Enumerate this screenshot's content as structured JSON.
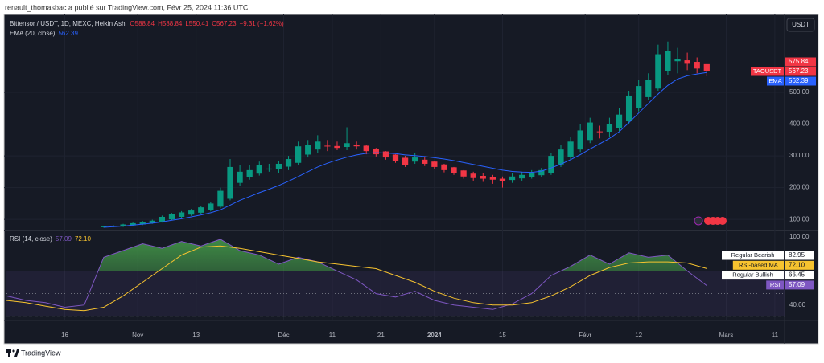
{
  "byline": "renault_thomasbac a publié sur TradingView.com, Févr 25, 2024 11:36 UTC",
  "footer": "TradingView",
  "chart_data": [
    {
      "type": "candlestick",
      "title": "Bittensor / USDT, 1D, MEXC, Heikin Ashi",
      "ohlc_labels": [
        "O588.84",
        "H588.84",
        "L550.41",
        "C567.23",
        "−9.31 (−1.62%)"
      ],
      "currency": "USDT",
      "up_color": "#089981",
      "down_color": "#f23645",
      "xlim": [
        0,
        160
      ],
      "ylim": [
        65,
        720
      ],
      "yticks": [
        {
          "value": 100,
          "label": "100.00"
        },
        {
          "value": 200,
          "label": "200.00"
        },
        {
          "value": 300,
          "label": "300.00"
        },
        {
          "value": 400,
          "label": "400.00"
        },
        {
          "value": 500,
          "label": "500.00"
        }
      ],
      "grid": true,
      "x": [
        20,
        22,
        24,
        26,
        28,
        30,
        32,
        34,
        36,
        38,
        40,
        42,
        44,
        46,
        48,
        50,
        52,
        54,
        56,
        58,
        60,
        62,
        64,
        66,
        68,
        70,
        72,
        74,
        76,
        78,
        80,
        82,
        84,
        86,
        88,
        90,
        92,
        94,
        96,
        98,
        100,
        102,
        104,
        106,
        108,
        110,
        112,
        114,
        116,
        118,
        120,
        122,
        124,
        126,
        128,
        130,
        132,
        134,
        136,
        138,
        140,
        142,
        144
      ],
      "open": [
        76,
        77,
        78,
        81,
        84,
        88,
        92,
        100,
        108,
        115,
        121,
        129,
        140,
        165,
        215,
        232,
        244,
        257,
        258,
        266,
        278,
        304,
        320,
        332,
        331,
        328,
        334,
        332,
        323,
        314,
        304,
        294,
        282,
        288,
        282,
        273,
        264,
        254,
        244,
        237,
        232,
        228,
        224,
        229,
        234,
        239,
        247,
        273,
        296,
        320,
        350,
        377,
        376,
        388,
        409,
        450,
        485,
        512,
        566,
        598,
        601,
        596,
        588.84
      ],
      "high": [
        80,
        82,
        86,
        90,
        95,
        99,
        112,
        120,
        126,
        133,
        143,
        156,
        200,
        290,
        270,
        270,
        282,
        275,
        285,
        300,
        345,
        350,
        365,
        350,
        345,
        390,
        345,
        335,
        325,
        315,
        305,
        300,
        310,
        295,
        285,
        275,
        265,
        255,
        250,
        245,
        240,
        235,
        245,
        250,
        255,
        262,
        310,
        335,
        360,
        400,
        420,
        395,
        420,
        450,
        505,
        540,
        560,
        650,
        660,
        640,
        625,
        610,
        588.84
      ],
      "low": [
        74,
        75,
        76,
        79,
        82,
        86,
        90,
        97,
        104,
        111,
        117,
        125,
        136,
        160,
        205,
        225,
        238,
        250,
        245,
        255,
        270,
        295,
        310,
        315,
        318,
        318,
        320,
        305,
        298,
        288,
        278,
        265,
        275,
        268,
        258,
        248,
        240,
        228,
        222,
        218,
        212,
        200,
        215,
        222,
        228,
        233,
        240,
        265,
        288,
        312,
        340,
        355,
        360,
        378,
        400,
        440,
        475,
        505,
        555,
        560,
        570,
        560,
        550.41
      ],
      "close": [
        78,
        80,
        84,
        88,
        92,
        96,
        108,
        116,
        122,
        128,
        138,
        150,
        190,
        265,
        250,
        255,
        270,
        260,
        275,
        290,
        330,
        335,
        345,
        330,
        325,
        340,
        330,
        315,
        305,
        295,
        285,
        270,
        295,
        275,
        265,
        255,
        245,
        235,
        230,
        228,
        225,
        220,
        235,
        240,
        245,
        255,
        300,
        320,
        345,
        380,
        405,
        375,
        400,
        430,
        490,
        520,
        540,
        620,
        630,
        605,
        590,
        575,
        567.23
      ],
      "series": [
        {
          "name": "EMA (20, close)",
          "color": "#2962ff",
          "value_label": "562.39",
          "values": [
            75,
            77,
            79,
            82,
            85,
            88,
            92,
            97,
            102,
            108,
            114,
            121,
            130,
            145,
            160,
            172,
            184,
            195,
            207,
            220,
            235,
            250,
            265,
            277,
            287,
            296,
            303,
            308,
            310,
            309,
            307,
            303,
            301,
            298,
            294,
            290,
            285,
            279,
            273,
            267,
            261,
            255,
            251,
            249,
            248,
            252,
            262,
            274,
            288,
            304,
            322,
            338,
            355,
            376,
            405,
            435,
            465,
            495,
            522,
            542,
            552,
            558,
            562.39
          ]
        }
      ],
      "price_tags": [
        {
          "label": "575.84",
          "color": "#f23645"
        },
        {
          "name": "TAOUSDT",
          "label": "567.23",
          "color": "#f23645"
        },
        {
          "name": "EMA",
          "label": "562.39",
          "color": "#2962ff"
        }
      ]
    },
    {
      "type": "line",
      "title": "RSI (14, close)",
      "xlim": [
        0,
        160
      ],
      "xticks": [
        {
          "value": 12,
          "label": "16"
        },
        {
          "value": 27,
          "label": "Nov"
        },
        {
          "value": 39,
          "label": "13"
        },
        {
          "value": 57,
          "label": "Déc"
        },
        {
          "value": 67,
          "label": "11"
        },
        {
          "value": 77,
          "label": "21"
        },
        {
          "value": 88,
          "label": "2024"
        },
        {
          "value": 102,
          "label": "15"
        },
        {
          "value": 119,
          "label": "Févr"
        },
        {
          "value": 130,
          "label": "12"
        },
        {
          "value": 148,
          "label": "Mars"
        },
        {
          "value": 158,
          "label": "11"
        }
      ],
      "ylim": [
        27,
        105
      ],
      "yticks": [
        {
          "value": 100,
          "label": "100.00"
        },
        {
          "value": 40,
          "label": "40.00"
        }
      ],
      "bands": [
        70,
        50,
        30
      ],
      "x": [
        0,
        4,
        8,
        12,
        16,
        20,
        24,
        28,
        32,
        36,
        40,
        44,
        48,
        52,
        56,
        60,
        64,
        68,
        72,
        76,
        80,
        84,
        88,
        92,
        96,
        100,
        104,
        108,
        112,
        116,
        120,
        124,
        128,
        132,
        136,
        140,
        144
      ],
      "series": [
        {
          "name": "RSI",
          "color": "#7e57c2",
          "value_label": "57.09",
          "values": [
            48,
            44,
            42,
            38,
            40,
            82,
            88,
            94,
            90,
            96,
            92,
            98,
            88,
            84,
            76,
            82,
            78,
            70,
            62,
            50,
            47,
            52,
            44,
            40,
            38,
            36,
            41,
            50,
            66,
            74,
            84,
            76,
            86,
            82,
            84,
            70,
            57.09
          ]
        },
        {
          "name": "RSI-based MA",
          "color": "#f7c32f",
          "value_label": "72.10",
          "values": [
            44,
            42,
            39,
            36,
            35,
            38,
            48,
            60,
            72,
            84,
            91,
            92,
            90,
            87,
            84,
            81,
            78,
            76,
            74,
            72,
            66,
            60,
            52,
            46,
            42,
            40,
            40,
            42,
            48,
            56,
            66,
            73,
            77,
            78,
            78,
            77,
            72.1
          ]
        }
      ],
      "divergence_tags": [
        {
          "name": "Regular Bearish",
          "label": "82.95"
        },
        {
          "name": "Regular Bullish",
          "label": "66.45"
        }
      ]
    }
  ]
}
